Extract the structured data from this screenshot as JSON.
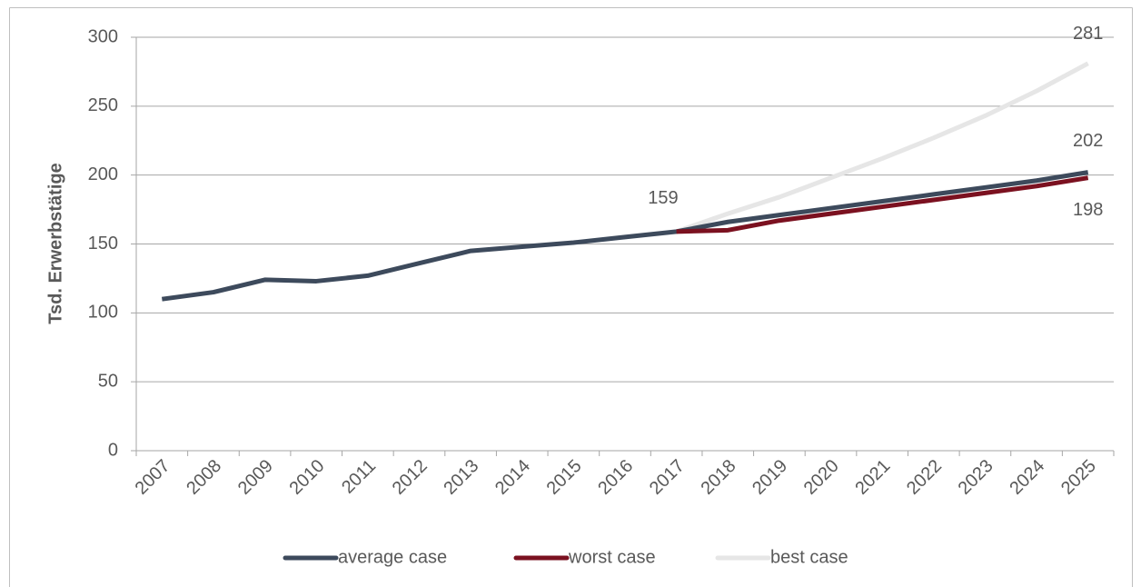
{
  "chart_data": {
    "type": "line",
    "y_label": "Tsd. Erwerbstätige",
    "categories": [
      "2007",
      "2008",
      "2009",
      "2010",
      "2011",
      "2012",
      "2013",
      "2014",
      "2015",
      "2016",
      "2017",
      "2018",
      "2019",
      "2020",
      "2021",
      "2022",
      "2023",
      "2024",
      "2025"
    ],
    "series": [
      {
        "name": "average case",
        "color": "#3d4a5c",
        "values": [
          110,
          115,
          124,
          123,
          127,
          136,
          145,
          148,
          151,
          155,
          159,
          166,
          171,
          176,
          181,
          186,
          191,
          196,
          202
        ]
      },
      {
        "name": "worst case",
        "color": "#7b1120",
        "values": [
          null,
          null,
          null,
          null,
          null,
          null,
          null,
          null,
          null,
          null,
          159,
          160,
          167,
          172,
          177,
          182,
          187,
          192,
          198
        ]
      },
      {
        "name": "best case",
        "color": "#e6e6e6",
        "values": [
          null,
          null,
          null,
          null,
          null,
          null,
          null,
          null,
          null,
          null,
          159,
          172,
          184,
          198,
          212,
          227,
          243,
          261,
          281
        ]
      }
    ],
    "ylim": [
      0,
      300
    ],
    "yticks": [
      0,
      50,
      100,
      150,
      200,
      250,
      300
    ],
    "grid": true,
    "legend": "bottom"
  }
}
